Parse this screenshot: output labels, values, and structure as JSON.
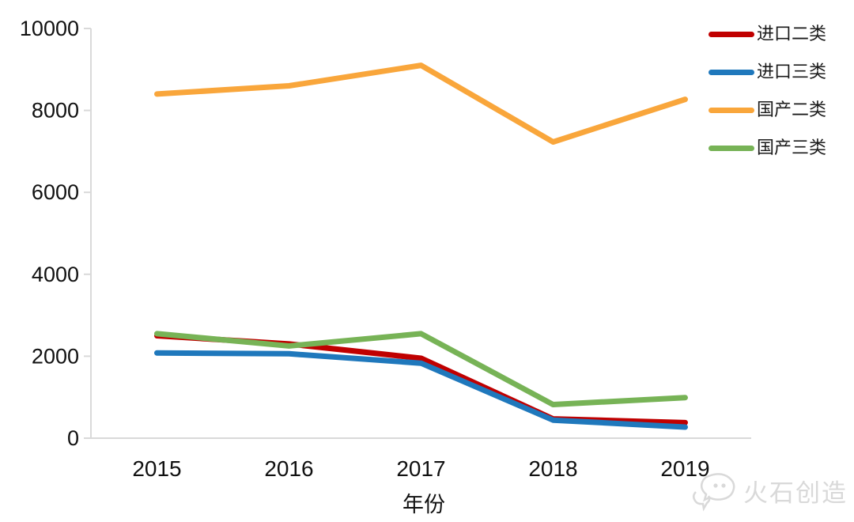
{
  "chart_data": {
    "type": "line",
    "x": [
      "2015",
      "2016",
      "2017",
      "2018",
      "2019"
    ],
    "xlabel": "年份",
    "ylabel": "",
    "title": "",
    "ylim": [
      0,
      10000
    ],
    "yticks": [
      0,
      2000,
      4000,
      6000,
      8000,
      10000
    ],
    "grid": false,
    "legend_position": "right-top",
    "series": [
      {
        "name": "进口二类",
        "color": "#C00000",
        "values": [
          2500,
          2300,
          1950,
          470,
          380
        ]
      },
      {
        "name": "进口三类",
        "color": "#1F78BC",
        "values": [
          2080,
          2060,
          1830,
          440,
          270
        ]
      },
      {
        "name": "国产二类",
        "color": "#F9A63B",
        "values": [
          8400,
          8600,
          9100,
          7230,
          8270
        ]
      },
      {
        "name": "国产三类",
        "color": "#77B356",
        "values": [
          2550,
          2250,
          2550,
          820,
          990
        ]
      }
    ]
  },
  "colors": {
    "axis": "#D9D9D9",
    "tick_text": "#111111",
    "watermark": "#D9D9D9"
  },
  "watermark": {
    "text": "火石创造"
  }
}
